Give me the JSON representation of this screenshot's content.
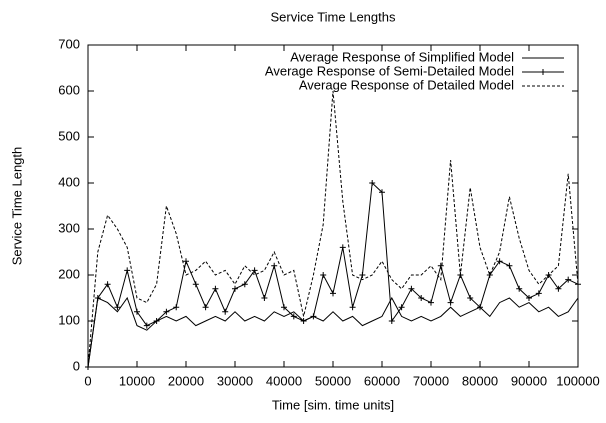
{
  "chart_data": {
    "type": "line",
    "title": "Service Time Lengths",
    "x_label": "Time [sim. time units]",
    "y_label": "Service Time Length",
    "x": [
      0,
      2000,
      4000,
      6000,
      8000,
      10000,
      12000,
      14000,
      16000,
      18000,
      20000,
      22000,
      24000,
      26000,
      28000,
      30000,
      32000,
      34000,
      36000,
      38000,
      40000,
      42000,
      44000,
      46000,
      48000,
      50000,
      52000,
      54000,
      56000,
      58000,
      60000,
      62000,
      64000,
      66000,
      68000,
      70000,
      72000,
      74000,
      76000,
      78000,
      80000,
      82000,
      84000,
      86000,
      88000,
      90000,
      92000,
      94000,
      96000,
      98000,
      100000
    ],
    "series": [
      {
        "name": "Average Response of Simplified Model",
        "color": "#000000",
        "style": "solid",
        "values": [
          0,
          150,
          140,
          120,
          150,
          90,
          80,
          100,
          110,
          100,
          110,
          90,
          100,
          110,
          100,
          120,
          100,
          110,
          100,
          120,
          110,
          120,
          100,
          110,
          100,
          120,
          100,
          110,
          90,
          100,
          110,
          150,
          110,
          100,
          110,
          100,
          110,
          130,
          110,
          120,
          130,
          110,
          140,
          150,
          130,
          140,
          120,
          130,
          110,
          120,
          150
        ]
      },
      {
        "name": "Average Response of Semi-Detailed Model",
        "color": "#000000",
        "style": "solid",
        "marker": "plus",
        "values": [
          0,
          150,
          180,
          130,
          210,
          120,
          90,
          100,
          120,
          130,
          230,
          180,
          130,
          170,
          120,
          170,
          180,
          210,
          150,
          220,
          130,
          110,
          100,
          110,
          200,
          160,
          260,
          130,
          200,
          400,
          380,
          100,
          130,
          170,
          150,
          140,
          220,
          140,
          200,
          150,
          130,
          200,
          230,
          220,
          170,
          150,
          160,
          200,
          170,
          190,
          180
        ]
      },
      {
        "name": "Average Response of Detailed Model",
        "color": "#000000",
        "style": "dashed",
        "values": [
          0,
          250,
          330,
          300,
          260,
          150,
          140,
          180,
          350,
          290,
          200,
          210,
          230,
          200,
          210,
          180,
          220,
          200,
          210,
          250,
          200,
          210,
          110,
          200,
          310,
          600,
          360,
          200,
          190,
          200,
          230,
          190,
          170,
          200,
          200,
          220,
          190,
          450,
          200,
          390,
          260,
          200,
          250,
          370,
          280,
          210,
          180,
          200,
          220,
          420,
          180
        ]
      }
    ],
    "xlim": [
      0,
      100000
    ],
    "xticks": [
      0,
      10000,
      20000,
      30000,
      40000,
      50000,
      60000,
      70000,
      80000,
      90000,
      100000
    ],
    "ylim": [
      0,
      700
    ],
    "yticks": [
      0,
      100,
      200,
      300,
      400,
      500,
      600,
      700
    ],
    "grid": false,
    "legend": "top-right"
  }
}
